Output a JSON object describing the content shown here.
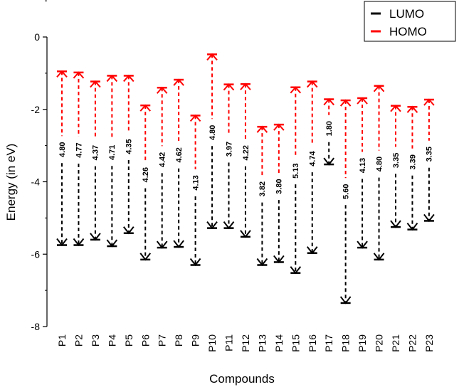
{
  "chart_data": {
    "type": "range-arrows",
    "title": "",
    "xlabel": "Compounds",
    "ylabel": "Energy (in eV)",
    "ylim": [
      -8,
      0
    ],
    "yticks": [
      0,
      -2,
      -4,
      -6,
      -8
    ],
    "grid": false,
    "legend_position": "top-right",
    "categories": [
      "P1",
      "P2",
      "P3",
      "P4",
      "P5",
      "P6",
      "P7",
      "P8",
      "P9",
      "P10",
      "P11",
      "P12",
      "P13",
      "P14",
      "P15",
      "P16",
      "P17",
      "P18",
      "P19",
      "P20",
      "P21",
      "P22",
      "P23"
    ],
    "series": [
      {
        "name": "LUMO",
        "color": "#000000",
        "values": [
          -5.75,
          -5.75,
          -5.6,
          -5.78,
          -5.42,
          -6.15,
          -5.82,
          -5.8,
          -6.3,
          -5.28,
          -5.28,
          -5.52,
          -6.3,
          -6.22,
          -6.52,
          -5.97,
          -3.52,
          -7.35,
          -5.82,
          -6.15,
          -5.25,
          -5.32,
          -5.08
        ]
      },
      {
        "name": "HOMO",
        "color": "#ff0000",
        "values": [
          -0.95,
          -0.98,
          -1.23,
          -1.07,
          -1.07,
          -1.89,
          -1.4,
          -1.18,
          -2.17,
          -0.48,
          -1.31,
          -1.3,
          -2.48,
          -2.42,
          -1.39,
          -1.23,
          -1.72,
          -1.75,
          -1.69,
          -1.35,
          -1.9,
          -1.93,
          -1.73
        ]
      }
    ],
    "gap_labels": [
      "4.80",
      "4.77",
      "4.37",
      "4.71",
      "4.35",
      "4.26",
      "4.42",
      "4.62",
      "4.13",
      "4.80",
      "3.97",
      "4.22",
      "3.82",
      "3.80",
      "5.13",
      "4.74",
      "1.80",
      "5.60",
      "4.13",
      "4.80",
      "3.35",
      "3.39",
      "3.35"
    ]
  }
}
